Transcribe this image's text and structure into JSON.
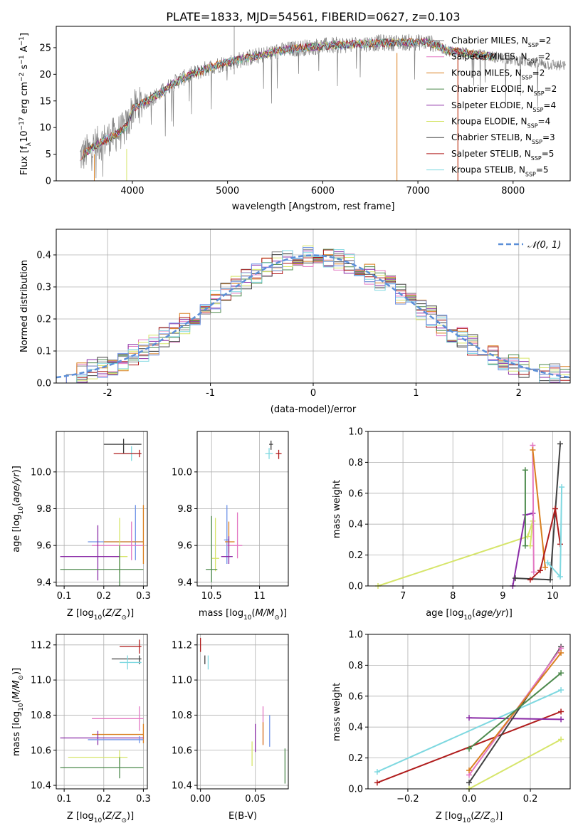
{
  "figure_title": "PLATE=1833, MJD=54561, FIBERID=0627, z=0.103",
  "colors": {
    "Chabrier MILES": "#808080",
    "Salpeter MILES": "#e377c2",
    "Kroupa MILES": "#d97f1f",
    "Chabrier ELODIE": "#4d8a4d",
    "Salpeter ELODIE": "#8a2ba6",
    "Kroupa ELODIE": "#d6e56a",
    "Chabrier STELIB": "#404040",
    "Salpeter STELIB": "#b01c1c",
    "Kroupa STELIB": "#7ed8e0",
    "extra_blue": "#6f93e8",
    "gaussian": "#5b8fd8"
  },
  "chart_data": [
    {
      "id": "spectrum",
      "type": "line",
      "xlabel": "wavelength [Angstrom, rest frame]",
      "ylabel": "Flux [f_λ10^-17 erg cm^-2 s^-1 A^-1]",
      "xlim": [
        3200,
        8600
      ],
      "ylim": [
        0,
        29
      ],
      "xticks": [
        4000,
        5000,
        6000,
        7000,
        8000
      ],
      "yticks": [
        0,
        5,
        10,
        15,
        20,
        25
      ],
      "grid": false,
      "legend_position": "right",
      "continuum": {
        "x": [
          3450,
          3600,
          3700,
          3800,
          3900,
          3950,
          4000,
          4100,
          4200,
          4300,
          4400,
          4500,
          4600,
          4700,
          4800,
          4900,
          5000,
          5100,
          5200,
          5300,
          5400,
          5500,
          5600,
          5700,
          5800,
          5900,
          6000,
          6100,
          6200,
          6300,
          6400,
          6500,
          6600,
          6700,
          6800,
          6900,
          7000,
          7100,
          7200,
          7300,
          7500,
          7700,
          7900,
          8100,
          8300,
          8550
        ],
        "y": [
          4.5,
          6.5,
          7.5,
          8.5,
          9.5,
          10.5,
          13.5,
          14.5,
          15.5,
          16.5,
          18.0,
          19.0,
          19.8,
          20.5,
          21.2,
          21.8,
          22.2,
          22.6,
          23.0,
          23.4,
          23.8,
          24.2,
          24.5,
          24.8,
          25.0,
          25.2,
          25.3,
          25.4,
          25.5,
          25.6,
          25.7,
          25.8,
          25.9,
          25.9,
          26.0,
          26.0,
          26.0,
          26.0,
          25.5,
          24.5,
          24.0,
          23.5,
          23.0,
          22.5,
          22.0,
          21.5
        ]
      },
      "series": [
        {
          "name": "Chabrier MILES",
          "nssp": "2"
        },
        {
          "name": "Salpeter MILES",
          "nssp": "2"
        },
        {
          "name": "Kroupa MILES",
          "nssp": "2"
        },
        {
          "name": "Chabrier ELODIE",
          "nssp": "2"
        },
        {
          "name": "Salpeter ELODIE",
          "nssp": "4"
        },
        {
          "name": "Kroupa ELODIE",
          "nssp": "4"
        },
        {
          "name": "Chabrier STELIB",
          "nssp": "3"
        },
        {
          "name": "Salpeter STELIB",
          "nssp": "5"
        },
        {
          "name": "Kroupa STELIB",
          "nssp": "5"
        }
      ]
    },
    {
      "id": "residuals",
      "type": "histogram",
      "xlabel": "(data-model)/error",
      "ylabel": "Normed distribution",
      "xlim": [
        -2.5,
        2.5
      ],
      "ylim": [
        0,
        0.48
      ],
      "xticks": [
        -2,
        -1,
        0,
        1,
        2
      ],
      "yticks": [
        0.0,
        0.1,
        0.2,
        0.3,
        0.4
      ],
      "grid": true,
      "legend": "𝒩(0, 1)",
      "legend_position": "top-right"
    },
    {
      "id": "age_vs_Z",
      "type": "errorbar",
      "xlabel": "Z [log10(Z/Z⊙)]",
      "ylabel": "age  [log10(age/yr)]",
      "xlim": [
        0.08,
        0.31
      ],
      "ylim": [
        9.38,
        10.22
      ],
      "xticks": [
        0.1,
        0.2,
        0.3
      ],
      "yticks": [
        9.4,
        9.6,
        9.8,
        10.0
      ],
      "grid": true,
      "points": [
        {
          "series": "Chabrier STELIB",
          "x": 0.25,
          "y": 10.15,
          "xlo": 0.2,
          "xhi": 0.295,
          "ylo": 10.1,
          "yhi": 10.18
        },
        {
          "series": "Kroupa STELIB",
          "x": 0.27,
          "y": 10.1,
          "xlo": 0.245,
          "xhi": 0.295,
          "ylo": 10.06,
          "yhi": 10.14
        },
        {
          "series": "Salpeter STELIB",
          "x": 0.29,
          "y": 10.1,
          "xlo": 0.225,
          "xhi": 0.295,
          "ylo": 10.08,
          "yhi": 10.12
        },
        {
          "series": "extra_blue",
          "x": 0.28,
          "y": 9.62,
          "xlo": 0.16,
          "xhi": 0.3,
          "ylo": 9.52,
          "yhi": 9.82
        },
        {
          "series": "Kroupa MILES",
          "x": 0.3,
          "y": 9.62,
          "xlo": 0.2,
          "xhi": 0.3,
          "ylo": 9.5,
          "yhi": 9.82
        },
        {
          "series": "Salpeter MILES",
          "x": 0.27,
          "y": 9.6,
          "xlo": 0.17,
          "xhi": 0.3,
          "ylo": 9.52,
          "yhi": 9.73
        },
        {
          "series": "Kroupa ELODIE",
          "x": 0.24,
          "y": 9.54,
          "xlo": 0.22,
          "xhi": 0.26,
          "ylo": 9.45,
          "yhi": 9.75
        },
        {
          "series": "Salpeter ELODIE",
          "x": 0.185,
          "y": 9.54,
          "xlo": 0.09,
          "xhi": 0.24,
          "ylo": 9.41,
          "yhi": 9.71
        },
        {
          "series": "Chabrier ELODIE",
          "x": 0.24,
          "y": 9.47,
          "xlo": 0.09,
          "xhi": 0.3,
          "ylo": 9.38,
          "yhi": 9.6
        }
      ]
    },
    {
      "id": "age_vs_mass",
      "type": "errorbar",
      "xlabel": "mass [log10(M/M⊙)]",
      "xlim": [
        10.35,
        11.3
      ],
      "ylim": [
        9.38,
        10.22
      ],
      "xticks": [
        10.5,
        11.0
      ],
      "yticks": [
        9.4,
        9.6,
        9.8,
        10.0
      ],
      "grid": true,
      "points": [
        {
          "series": "Chabrier STELIB",
          "x": 11.12,
          "y": 10.15,
          "xlo": 11.1,
          "xhi": 11.14,
          "ylo": 10.12,
          "yhi": 10.17
        },
        {
          "series": "Kroupa STELIB",
          "x": 11.1,
          "y": 10.1,
          "xlo": 11.06,
          "xhi": 11.14,
          "ylo": 10.07,
          "yhi": 10.13
        },
        {
          "series": "Salpeter STELIB",
          "x": 11.2,
          "y": 10.1,
          "xlo": 11.17,
          "xhi": 11.23,
          "ylo": 10.07,
          "yhi": 10.12
        },
        {
          "series": "extra_blue",
          "x": 10.66,
          "y": 9.63,
          "xlo": 10.63,
          "xhi": 10.68,
          "ylo": 9.5,
          "yhi": 9.82
        },
        {
          "series": "Kroupa MILES",
          "x": 10.68,
          "y": 9.62,
          "xlo": 10.64,
          "xhi": 10.74,
          "ylo": 9.56,
          "yhi": 9.73
        },
        {
          "series": "Salpeter MILES",
          "x": 10.77,
          "y": 9.6,
          "xlo": 10.66,
          "xhi": 10.82,
          "ylo": 9.53,
          "yhi": 9.78
        },
        {
          "series": "Salpeter ELODIE",
          "x": 10.68,
          "y": 9.54,
          "xlo": 10.6,
          "xhi": 10.72,
          "ylo": 9.5,
          "yhi": 9.65
        },
        {
          "series": "Kroupa ELODIE",
          "x": 10.54,
          "y": 9.53,
          "xlo": 10.5,
          "xhi": 10.58,
          "ylo": 9.46,
          "yhi": 9.75
        },
        {
          "series": "Chabrier ELODIE",
          "x": 10.5,
          "y": 9.47,
          "xlo": 10.44,
          "xhi": 10.56,
          "ylo": 9.4,
          "yhi": 9.76
        }
      ]
    },
    {
      "id": "weight_vs_age",
      "type": "line",
      "xlabel": "age  [log10(age/yr)]",
      "ylabel": "mass weight",
      "xlim": [
        6.3,
        10.35
      ],
      "ylim": [
        0,
        1
      ],
      "xticks": [
        7,
        8,
        9,
        10
      ],
      "yticks": [
        0.0,
        0.2,
        0.4,
        0.6,
        0.8,
        1.0
      ],
      "grid": true,
      "series": [
        {
          "name": "Kroupa ELODIE",
          "x": [
            6.5,
            9.5,
            9.6,
            9.55
          ],
          "y": [
            0.0,
            0.32,
            0.42,
            0.26
          ]
        },
        {
          "name": "Salpeter ELODIE",
          "x": [
            9.2,
            9.45,
            9.6
          ],
          "y": [
            0.0,
            0.46,
            0.47
          ]
        },
        {
          "name": "Chabrier ELODIE",
          "x": [
            9.45,
            9.45
          ],
          "y": [
            0.26,
            0.75
          ]
        },
        {
          "name": "Salpeter MILES",
          "x": [
            9.6,
            9.62
          ],
          "y": [
            0.91,
            0.09
          ]
        },
        {
          "name": "Kroupa MILES",
          "x": [
            9.6,
            9.85
          ],
          "y": [
            0.88,
            0.12
          ]
        },
        {
          "name": "Chabrier STELIB",
          "x": [
            9.25,
            9.95,
            10.15
          ],
          "y": [
            0.05,
            0.04,
            0.92
          ]
        },
        {
          "name": "Salpeter STELIB",
          "x": [
            9.55,
            9.75,
            10.05,
            10.15
          ],
          "y": [
            0.04,
            0.1,
            0.5,
            0.27
          ]
        },
        {
          "name": "Kroupa STELIB",
          "x": [
            9.9,
            10.15,
            10.18
          ],
          "y": [
            0.15,
            0.06,
            0.64
          ]
        }
      ]
    },
    {
      "id": "mass_vs_Z",
      "type": "errorbar",
      "xlabel": "Z [log10(Z/Z⊙)]",
      "ylabel": "mass [log10(M/M⊙)]",
      "xlim": [
        0.08,
        0.31
      ],
      "ylim": [
        10.38,
        11.26
      ],
      "xticks": [
        0.1,
        0.2,
        0.3
      ],
      "yticks": [
        10.4,
        10.6,
        10.8,
        11.0,
        11.2
      ],
      "grid": true,
      "points": [
        {
          "series": "Salpeter STELIB",
          "x": 0.29,
          "y": 11.19,
          "xlo": 0.24,
          "xhi": 0.295,
          "ylo": 11.15,
          "yhi": 11.23
        },
        {
          "series": "Chabrier STELIB",
          "x": 0.29,
          "y": 11.12,
          "xlo": 0.22,
          "xhi": 0.295,
          "ylo": 11.09,
          "yhi": 11.14
        },
        {
          "series": "Kroupa STELIB",
          "x": 0.26,
          "y": 11.1,
          "xlo": 0.24,
          "xhi": 0.295,
          "ylo": 11.06,
          "yhi": 11.14
        },
        {
          "series": "Salpeter MILES",
          "x": 0.29,
          "y": 10.78,
          "xlo": 0.17,
          "xhi": 0.3,
          "ylo": 10.71,
          "yhi": 10.85
        },
        {
          "series": "Kroupa MILES",
          "x": 0.3,
          "y": 10.69,
          "xlo": 0.17,
          "xhi": 0.3,
          "ylo": 10.64,
          "yhi": 10.75
        },
        {
          "series": "Salpeter ELODIE",
          "x": 0.185,
          "y": 10.67,
          "xlo": 0.09,
          "xhi": 0.3,
          "ylo": 10.63,
          "yhi": 10.71
        },
        {
          "series": "extra_blue",
          "x": 0.29,
          "y": 10.66,
          "xlo": 0.16,
          "xhi": 0.3,
          "ylo": 10.64,
          "yhi": 10.68
        },
        {
          "series": "Kroupa ELODIE",
          "x": 0.24,
          "y": 10.56,
          "xlo": 0.11,
          "xhi": 0.26,
          "ylo": 10.52,
          "yhi": 10.6
        },
        {
          "series": "Chabrier ELODIE",
          "x": 0.24,
          "y": 10.5,
          "xlo": 0.09,
          "xhi": 0.3,
          "ylo": 10.44,
          "yhi": 10.56
        }
      ]
    },
    {
      "id": "mass_vs_ebv",
      "type": "errorbar",
      "xlabel": "E(B-V)",
      "xlim": [
        -0.003,
        0.08
      ],
      "ylim": [
        10.38,
        11.26
      ],
      "xticks": [
        0.0,
        0.05
      ],
      "xticklabels": [
        "0.00",
        "0.05"
      ],
      "yticks": [
        10.4,
        10.6,
        10.8,
        11.0,
        11.2
      ],
      "grid": true,
      "points": [
        {
          "series": "Salpeter STELIB",
          "x": 0.0,
          "y": 11.2,
          "xlo": 0.0,
          "xhi": 0.0,
          "ylo": 11.16,
          "yhi": 11.24
        },
        {
          "series": "Chabrier STELIB",
          "x": 0.004,
          "y": 11.12,
          "xlo": 0.004,
          "xhi": 0.004,
          "ylo": 11.09,
          "yhi": 11.14
        },
        {
          "series": "Kroupa STELIB",
          "x": 0.007,
          "y": 11.1,
          "xlo": 0.007,
          "xhi": 0.007,
          "ylo": 11.06,
          "yhi": 11.14
        },
        {
          "series": "Salpeter MILES",
          "x": 0.057,
          "y": 10.78,
          "xlo": 0.057,
          "xhi": 0.057,
          "ylo": 10.63,
          "yhi": 10.85
        },
        {
          "series": "Kroupa MILES",
          "x": 0.057,
          "y": 10.7,
          "xlo": 0.057,
          "xhi": 0.057,
          "ylo": 10.63,
          "yhi": 10.76
        },
        {
          "series": "extra_blue",
          "x": 0.063,
          "y": 10.7,
          "xlo": 0.063,
          "xhi": 0.063,
          "ylo": 10.62,
          "yhi": 10.8
        },
        {
          "series": "Salpeter ELODIE",
          "x": 0.05,
          "y": 10.67,
          "xlo": 0.05,
          "xhi": 0.05,
          "ylo": 10.59,
          "yhi": 10.75
        },
        {
          "series": "Kroupa ELODIE",
          "x": 0.047,
          "y": 10.58,
          "xlo": 0.047,
          "xhi": 0.047,
          "ylo": 10.51,
          "yhi": 10.65
        },
        {
          "series": "Chabrier ELODIE",
          "x": 0.077,
          "y": 10.5,
          "xlo": 0.077,
          "xhi": 0.077,
          "ylo": 10.41,
          "yhi": 10.61
        }
      ]
    },
    {
      "id": "weight_vs_Z",
      "type": "line",
      "xlabel": "Z [log10(Z/Z⊙)]",
      "ylabel": "mass weight",
      "xlim": [
        -0.33,
        0.33
      ],
      "ylim": [
        0,
        1
      ],
      "xticks": [
        -0.2,
        0.0,
        0.2
      ],
      "xticklabels": [
        "−0.2",
        "0.0",
        "0.2"
      ],
      "yticks": [
        0.0,
        0.2,
        0.4,
        0.6,
        0.8,
        1.0
      ],
      "grid": true,
      "series": [
        {
          "name": "Salpeter STELIB",
          "x": [
            -0.3,
            0.3
          ],
          "y": [
            0.04,
            0.5
          ]
        },
        {
          "name": "Kroupa STELIB",
          "x": [
            -0.3,
            0.3
          ],
          "y": [
            0.11,
            0.64
          ]
        },
        {
          "name": "Salpeter ELODIE",
          "x": [
            0.0,
            0.3
          ],
          "y": [
            0.46,
            0.45
          ]
        },
        {
          "name": "Chabrier STELIB",
          "x": [
            0.0,
            0.3
          ],
          "y": [
            0.04,
            0.92
          ]
        },
        {
          "name": "Salpeter MILES",
          "x": [
            0.0,
            0.3
          ],
          "y": [
            0.09,
            0.91
          ]
        },
        {
          "name": "Kroupa MILES",
          "x": [
            0.0,
            0.3
          ],
          "y": [
            0.12,
            0.88
          ]
        },
        {
          "name": "Chabrier ELODIE",
          "x": [
            0.0,
            0.3
          ],
          "y": [
            0.26,
            0.75
          ]
        },
        {
          "name": "Kroupa ELODIE",
          "x": [
            0.0,
            0.3
          ],
          "y": [
            0.0,
            0.32
          ]
        }
      ]
    }
  ]
}
